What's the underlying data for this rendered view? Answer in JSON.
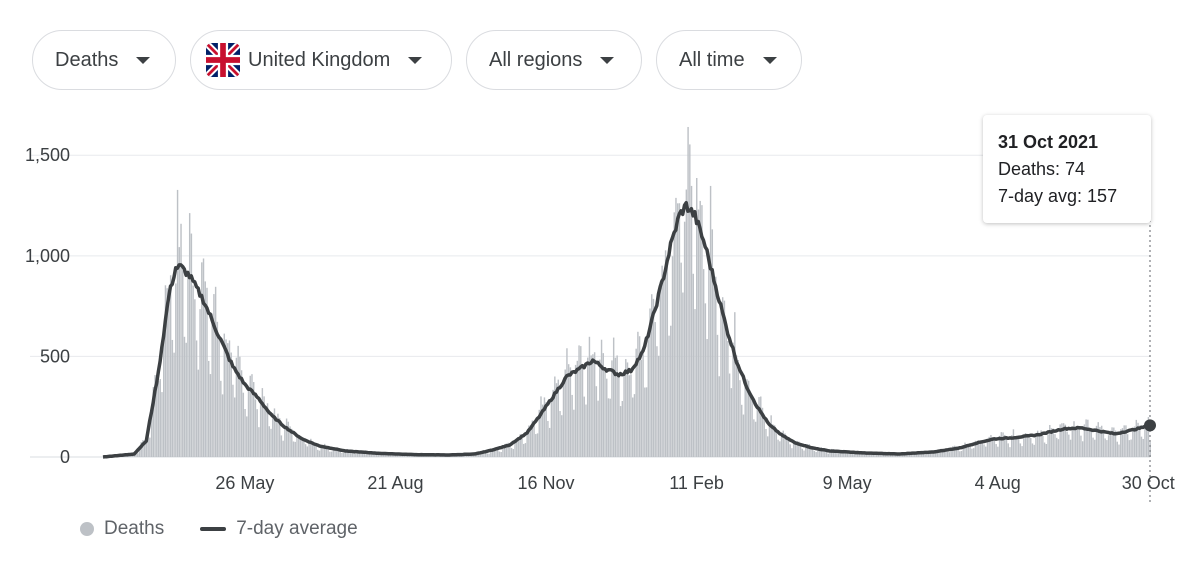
{
  "filters": {
    "metric": "Deaths",
    "country": "United Kingdom",
    "region": "All regions",
    "time": "All time"
  },
  "tooltip": {
    "date": "31 Oct 2021",
    "deaths_label": "Deaths: 74",
    "avg_label": "7-day avg: 157"
  },
  "legend": {
    "bars": "Deaths",
    "line": "7-day average"
  },
  "colors": {
    "bars": "#bdc1c6",
    "line": "#3c4043",
    "grid": "#e8eaed"
  },
  "chart_data": {
    "type": "bar",
    "title": "",
    "xlabel": "",
    "ylabel": "",
    "ylim": [
      0,
      1700
    ],
    "y_ticks": [
      {
        "value": 0,
        "label": "0"
      },
      {
        "value": 500,
        "label": "500"
      },
      {
        "value": 1000,
        "label": "1,000"
      },
      {
        "value": 1500,
        "label": "1,500"
      }
    ],
    "x_ticks": [
      {
        "day": 82,
        "label": "26 May"
      },
      {
        "day": 169,
        "label": "21 Aug"
      },
      {
        "day": 256,
        "label": "16 Nov"
      },
      {
        "day": 343,
        "label": "11 Feb"
      },
      {
        "day": 430,
        "label": "9 May"
      },
      {
        "day": 517,
        "label": "4 Aug"
      },
      {
        "day": 604,
        "label": "30 Oct"
      }
    ],
    "x_range_days": [
      0,
      605
    ],
    "avg_anchors": [
      [
        0,
        0
      ],
      [
        18,
        15
      ],
      [
        25,
        80
      ],
      [
        32,
        420
      ],
      [
        38,
        800
      ],
      [
        42,
        940
      ],
      [
        45,
        945
      ],
      [
        50,
        900
      ],
      [
        58,
        780
      ],
      [
        66,
        620
      ],
      [
        75,
        450
      ],
      [
        82,
        360
      ],
      [
        90,
        290
      ],
      [
        97,
        210
      ],
      [
        105,
        150
      ],
      [
        115,
        90
      ],
      [
        125,
        55
      ],
      [
        140,
        30
      ],
      [
        160,
        18
      ],
      [
        180,
        12
      ],
      [
        200,
        10
      ],
      [
        215,
        15
      ],
      [
        225,
        35
      ],
      [
        235,
        60
      ],
      [
        245,
        120
      ],
      [
        252,
        200
      ],
      [
        260,
        300
      ],
      [
        268,
        400
      ],
      [
        276,
        440
      ],
      [
        283,
        480
      ],
      [
        290,
        440
      ],
      [
        298,
        410
      ],
      [
        305,
        430
      ],
      [
        312,
        520
      ],
      [
        318,
        700
      ],
      [
        324,
        900
      ],
      [
        328,
        1050
      ],
      [
        333,
        1200
      ],
      [
        337,
        1250
      ],
      [
        342,
        1200
      ],
      [
        348,
        1050
      ],
      [
        354,
        850
      ],
      [
        360,
        650
      ],
      [
        366,
        480
      ],
      [
        372,
        350
      ],
      [
        378,
        250
      ],
      [
        385,
        160
      ],
      [
        392,
        110
      ],
      [
        400,
        70
      ],
      [
        410,
        45
      ],
      [
        420,
        30
      ],
      [
        440,
        20
      ],
      [
        460,
        15
      ],
      [
        480,
        25
      ],
      [
        495,
        45
      ],
      [
        505,
        70
      ],
      [
        515,
        90
      ],
      [
        525,
        95
      ],
      [
        540,
        110
      ],
      [
        555,
        140
      ],
      [
        565,
        145
      ],
      [
        575,
        130
      ],
      [
        585,
        115
      ],
      [
        595,
        135
      ],
      [
        602,
        150
      ],
      [
        605,
        157
      ]
    ],
    "series": [
      {
        "name": "Deaths",
        "kind": "daily-bars"
      },
      {
        "name": "7-day average",
        "kind": "line"
      }
    ],
    "highlight_point": {
      "day": 605,
      "value": 157,
      "deaths": 74
    }
  }
}
